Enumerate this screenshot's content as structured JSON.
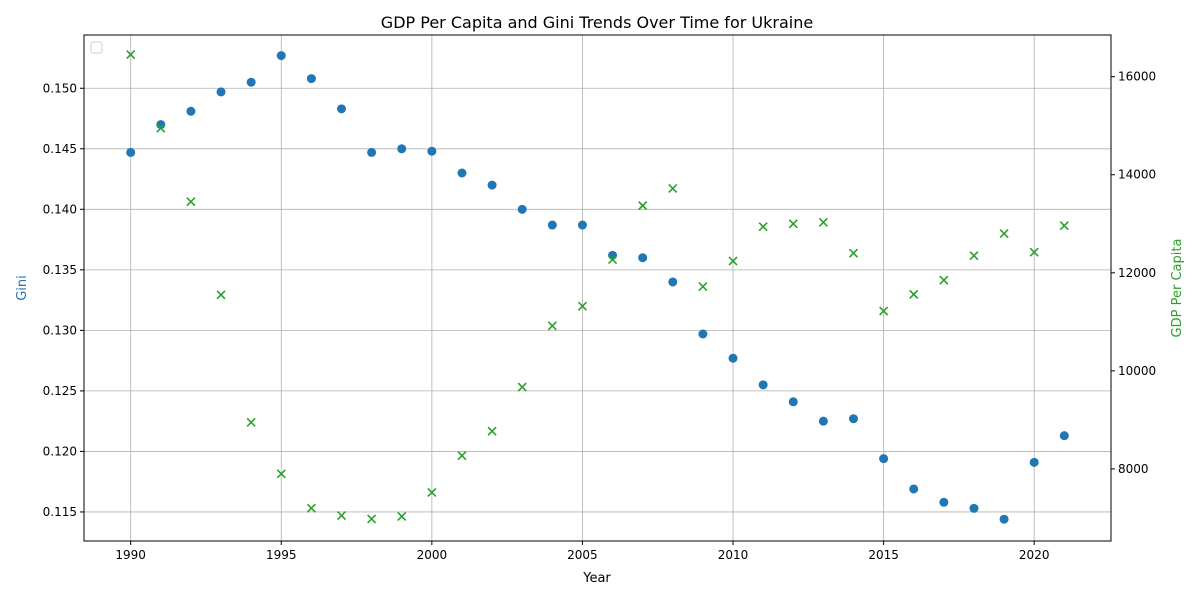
{
  "chart_data": {
    "type": "scatter",
    "title": "GDP Per Capita and Gini Trends Over Time for Ukraine",
    "xlabel": "Year",
    "ylabel_left": "Gini",
    "ylabel_right": "GDP Per Capita",
    "xlim": [
      1988.45,
      2022.55
    ],
    "ylim_left": [
      0.1126,
      0.1544
    ],
    "ylim_right": [
      6530,
      16850
    ],
    "x_ticks": [
      1990,
      1995,
      2000,
      2005,
      2010,
      2015,
      2020
    ],
    "y_left_ticks": [
      0.115,
      0.12,
      0.125,
      0.13,
      0.135,
      0.14,
      0.145,
      0.15
    ],
    "y_left_tick_labels": [
      "0.115",
      "0.120",
      "0.125",
      "0.130",
      "0.135",
      "0.140",
      "0.145",
      "0.150"
    ],
    "y_right_ticks": [
      8000,
      10000,
      12000,
      14000,
      16000
    ],
    "y_right_tick_labels": [
      "8000",
      "10000",
      "12000",
      "14000",
      "16000"
    ],
    "grid": true,
    "legend_position": "upper-left",
    "colors": {
      "gini": "#1f77b4",
      "gdp": "#2ca02c"
    },
    "x": [
      1990,
      1991,
      1992,
      1993,
      1994,
      1995,
      1996,
      1997,
      1998,
      1999,
      2000,
      2001,
      2002,
      2003,
      2004,
      2005,
      2006,
      2007,
      2008,
      2009,
      2010,
      2011,
      2012,
      2013,
      2014,
      2015,
      2016,
      2017,
      2018,
      2019,
      2020,
      2021
    ],
    "series": [
      {
        "axis": "left",
        "marker": "circle",
        "values": [
          0.1447,
          0.147,
          0.1481,
          0.1497,
          0.1505,
          0.1527,
          0.1508,
          0.1483,
          0.1447,
          0.145,
          0.1448,
          0.143,
          0.142,
          0.14,
          0.1387,
          0.1387,
          0.1362,
          0.136,
          0.134,
          0.1297,
          0.1277,
          0.1255,
          0.1241,
          0.1225,
          0.1227,
          0.1194,
          0.1169,
          0.1158,
          0.1153,
          0.1144,
          0.1191,
          0.1213
        ]
      },
      {
        "axis": "right",
        "marker": "x",
        "values": [
          16450,
          14950,
          13450,
          11550,
          8950,
          7900,
          7200,
          7050,
          6980,
          7030,
          7520,
          8270,
          8770,
          9670,
          10920,
          11320,
          12270,
          13370,
          13720,
          11720,
          12240,
          12940,
          13000,
          13030,
          12400,
          11220,
          11560,
          11850,
          12350,
          12800,
          12420,
          12960
        ]
      }
    ]
  }
}
